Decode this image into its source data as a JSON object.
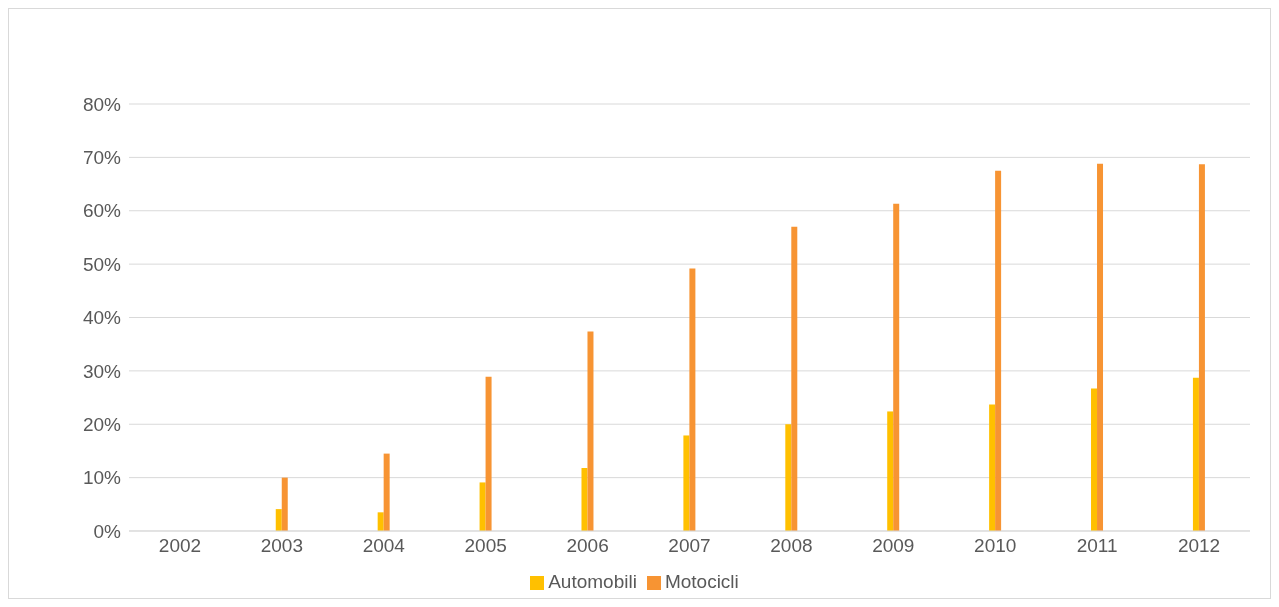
{
  "chart_data": {
    "type": "bar",
    "categories": [
      "2002",
      "2003",
      "2004",
      "2005",
      "2006",
      "2007",
      "2008",
      "2009",
      "2010",
      "2011",
      "2012"
    ],
    "series": [
      {
        "name": "Automobili",
        "color": "#ffc000",
        "values": [
          0,
          4.1,
          3.5,
          9.1,
          11.8,
          17.9,
          20.0,
          22.4,
          23.7,
          26.7,
          28.7
        ]
      },
      {
        "name": "Motocicli",
        "color": "#f79433",
        "values": [
          0,
          10.0,
          14.5,
          28.9,
          37.4,
          49.2,
          57.0,
          61.3,
          67.5,
          68.8,
          68.7
        ]
      }
    ],
    "ylim": [
      0,
      80
    ],
    "yticks": [
      {
        "value": 0,
        "label": "0%"
      },
      {
        "value": 10,
        "label": "10%"
      },
      {
        "value": 20,
        "label": "20%"
      },
      {
        "value": 30,
        "label": "30%"
      },
      {
        "value": 40,
        "label": "40%"
      },
      {
        "value": 50,
        "label": "50%"
      },
      {
        "value": 60,
        "label": "60%"
      },
      {
        "value": 70,
        "label": "70%"
      },
      {
        "value": 80,
        "label": "80%"
      }
    ],
    "grid": "y",
    "legend": "bottom"
  }
}
